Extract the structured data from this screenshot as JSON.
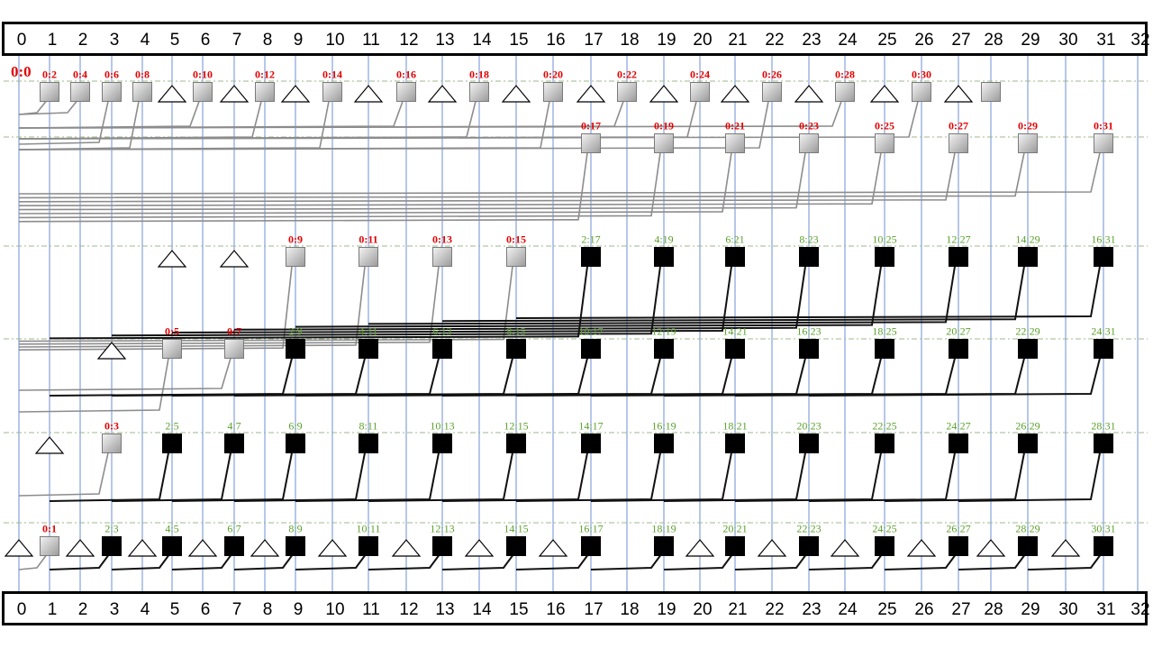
{
  "bits": [
    "0",
    "1",
    "2",
    "3",
    "4",
    "5",
    "6",
    "7",
    "8",
    "9",
    "10",
    "11",
    "12",
    "13",
    "14",
    "15",
    "16",
    "17",
    "18",
    "19",
    "20",
    "21",
    "22",
    "23",
    "24",
    "25",
    "26",
    "27",
    "28",
    "29",
    "30",
    "31",
    "32"
  ],
  "colors": {
    "grid_line": "#6c8fd6",
    "level_line": "#9cb88c",
    "red_label": "#e30000",
    "green_label": "#5aa02c",
    "black_node": "#000000",
    "gray_node_light": "#f2f2f2",
    "gray_node_dark": "#9a9a9a",
    "wire_black": "#111111",
    "wire_gray": "#8c8c8c"
  },
  "origin_label": "0:0",
  "levels": [
    {
      "name": "level-1",
      "nodes": [
        {
          "col": 1,
          "type": "gray",
          "label": "0:2"
        },
        {
          "col": 2,
          "type": "gray",
          "label": "0:4"
        },
        {
          "col": 3,
          "type": "gray",
          "label": "0:6"
        },
        {
          "col": 4,
          "type": "gray",
          "label": "0:8"
        },
        {
          "col": 5,
          "type": "triangle"
        },
        {
          "col": 6,
          "type": "gray",
          "label": "0:10"
        },
        {
          "col": 7,
          "type": "triangle"
        },
        {
          "col": 8,
          "type": "gray",
          "label": "0:12"
        },
        {
          "col": 9,
          "type": "triangle"
        },
        {
          "col": 10,
          "type": "gray",
          "label": "0:14"
        },
        {
          "col": 11,
          "type": "triangle"
        },
        {
          "col": 12,
          "type": "gray",
          "label": "0:16"
        },
        {
          "col": 13,
          "type": "triangle"
        },
        {
          "col": 14,
          "type": "gray",
          "label": "0:18"
        },
        {
          "col": 15,
          "type": "triangle"
        },
        {
          "col": 16,
          "type": "gray",
          "label": "0:20"
        },
        {
          "col": 17,
          "type": "triangle"
        },
        {
          "col": 18,
          "type": "gray",
          "label": "0:22"
        },
        {
          "col": 19,
          "type": "triangle"
        },
        {
          "col": 20,
          "type": "gray",
          "label": "0:24"
        },
        {
          "col": 21,
          "type": "triangle"
        },
        {
          "col": 22,
          "type": "gray",
          "label": "0:26"
        },
        {
          "col": 23,
          "type": "triangle"
        },
        {
          "col": 24,
          "type": "gray",
          "label": "0:28"
        },
        {
          "col": 25,
          "type": "triangle"
        },
        {
          "col": 26,
          "type": "gray",
          "label": "0:30"
        },
        {
          "col": 27,
          "type": "triangle"
        },
        {
          "col": 28,
          "type": "gray"
        }
      ]
    },
    {
      "name": "level-2",
      "nodes": [
        {
          "col": 17,
          "type": "gray",
          "label": "0:17"
        },
        {
          "col": 19,
          "type": "gray",
          "label": "0:19"
        },
        {
          "col": 21,
          "type": "gray",
          "label": "0:21"
        },
        {
          "col": 23,
          "type": "gray",
          "label": "0:23"
        },
        {
          "col": 25,
          "type": "gray",
          "label": "0:25"
        },
        {
          "col": 27,
          "type": "gray",
          "label": "0:27"
        },
        {
          "col": 29,
          "type": "gray",
          "label": "0:29"
        },
        {
          "col": 31,
          "type": "gray",
          "label": "0:31"
        }
      ]
    },
    {
      "name": "level-3",
      "nodes": [
        {
          "col": 5,
          "type": "triangle"
        },
        {
          "col": 7,
          "type": "triangle"
        },
        {
          "col": 9,
          "type": "gray",
          "label": "0:9"
        },
        {
          "col": 11,
          "type": "gray",
          "label": "0:11"
        },
        {
          "col": 13,
          "type": "gray",
          "label": "0:13"
        },
        {
          "col": 15,
          "type": "gray",
          "label": "0:15"
        },
        {
          "col": 17,
          "type": "black",
          "label": "2:17"
        },
        {
          "col": 19,
          "type": "black",
          "label": "4:19"
        },
        {
          "col": 21,
          "type": "black",
          "label": "6:21"
        },
        {
          "col": 23,
          "type": "black",
          "label": "8:23"
        },
        {
          "col": 25,
          "type": "black",
          "label": "10:25"
        },
        {
          "col": 27,
          "type": "black",
          "label": "12:27"
        },
        {
          "col": 29,
          "type": "black",
          "label": "14:29"
        },
        {
          "col": 31,
          "type": "black",
          "label": "16:31"
        }
      ]
    },
    {
      "name": "level-4",
      "nodes": [
        {
          "col": 3,
          "type": "triangle"
        },
        {
          "col": 5,
          "type": "gray",
          "label": "0:5"
        },
        {
          "col": 7,
          "type": "gray",
          "label": "0:7"
        },
        {
          "col": 9,
          "type": "black",
          "label": "2:9"
        },
        {
          "col": 11,
          "type": "black",
          "label": "4:11"
        },
        {
          "col": 13,
          "type": "black",
          "label": "6:13"
        },
        {
          "col": 15,
          "type": "black",
          "label": "8:15"
        },
        {
          "col": 17,
          "type": "black",
          "label": "10:17"
        },
        {
          "col": 19,
          "type": "black",
          "label": "12:19"
        },
        {
          "col": 21,
          "type": "black",
          "label": "14:21"
        },
        {
          "col": 23,
          "type": "black",
          "label": "16:23"
        },
        {
          "col": 25,
          "type": "black",
          "label": "18:25"
        },
        {
          "col": 27,
          "type": "black",
          "label": "20:27"
        },
        {
          "col": 29,
          "type": "black",
          "label": "22:29"
        },
        {
          "col": 31,
          "type": "black",
          "label": "24:31"
        }
      ]
    },
    {
      "name": "level-5",
      "nodes": [
        {
          "col": 1,
          "type": "triangle"
        },
        {
          "col": 3,
          "type": "gray",
          "label": "0:3"
        },
        {
          "col": 5,
          "type": "black",
          "label": "2:5"
        },
        {
          "col": 7,
          "type": "black",
          "label": "4:7"
        },
        {
          "col": 9,
          "type": "black",
          "label": "6:9"
        },
        {
          "col": 11,
          "type": "black",
          "label": "8:11"
        },
        {
          "col": 13,
          "type": "black",
          "label": "10:13"
        },
        {
          "col": 15,
          "type": "black",
          "label": "12:15"
        },
        {
          "col": 17,
          "type": "black",
          "label": "14:17"
        },
        {
          "col": 19,
          "type": "black",
          "label": "16:19"
        },
        {
          "col": 21,
          "type": "black",
          "label": "18:21"
        },
        {
          "col": 23,
          "type": "black",
          "label": "20:23"
        },
        {
          "col": 25,
          "type": "black",
          "label": "22:25"
        },
        {
          "col": 27,
          "type": "black",
          "label": "24:27"
        },
        {
          "col": 29,
          "type": "black",
          "label": "26:29"
        },
        {
          "col": 31,
          "type": "black",
          "label": "28:31"
        }
      ]
    },
    {
      "name": "level-6",
      "nodes": [
        {
          "col": 0,
          "type": "triangle"
        },
        {
          "col": 1,
          "type": "gray",
          "label": "0:1"
        },
        {
          "col": 2,
          "type": "triangle"
        },
        {
          "col": 3,
          "type": "black",
          "label": "2:3"
        },
        {
          "col": 4,
          "type": "triangle"
        },
        {
          "col": 5,
          "type": "black",
          "label": "4:5"
        },
        {
          "col": 6,
          "type": "triangle"
        },
        {
          "col": 7,
          "type": "black",
          "label": "6:7"
        },
        {
          "col": 8,
          "type": "triangle"
        },
        {
          "col": 9,
          "type": "black",
          "label": "8:9"
        },
        {
          "col": 10,
          "type": "triangle"
        },
        {
          "col": 11,
          "type": "black",
          "label": "10:11"
        },
        {
          "col": 12,
          "type": "triangle"
        },
        {
          "col": 13,
          "type": "black",
          "label": "12:13"
        },
        {
          "col": 14,
          "type": "triangle"
        },
        {
          "col": 15,
          "type": "black",
          "label": "14:15"
        },
        {
          "col": 16,
          "type": "triangle"
        },
        {
          "col": 17,
          "type": "black",
          "label": "16:17"
        },
        {
          "col": 19,
          "type": "black",
          "label": "18:19"
        },
        {
          "col": 20,
          "type": "triangle"
        },
        {
          "col": 21,
          "type": "black",
          "label": "20:21"
        },
        {
          "col": 22,
          "type": "triangle"
        },
        {
          "col": 23,
          "type": "black",
          "label": "22:23"
        },
        {
          "col": 24,
          "type": "triangle"
        },
        {
          "col": 25,
          "type": "black",
          "label": "24:25"
        },
        {
          "col": 26,
          "type": "triangle"
        },
        {
          "col": 27,
          "type": "black",
          "label": "26:27"
        },
        {
          "col": 28,
          "type": "triangle"
        },
        {
          "col": 29,
          "type": "black",
          "label": "28:29"
        },
        {
          "col": 30,
          "type": "triangle"
        },
        {
          "col": 31,
          "type": "black",
          "label": "30:31"
        }
      ]
    }
  ]
}
